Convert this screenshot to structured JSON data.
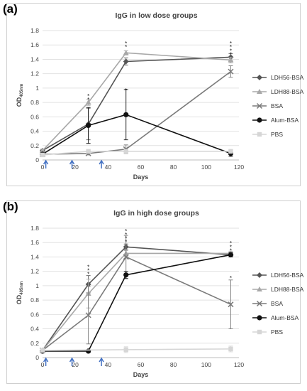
{
  "chart_data": [
    {
      "type": "line",
      "panel_label": "(a)",
      "title": "IgG in low dose groups",
      "xlabel": "Days",
      "ylabel_main": "OD",
      "ylabel_sub": "405nm",
      "xlim": [
        0,
        120
      ],
      "ylim": [
        0,
        1.8
      ],
      "xticks": [
        "0",
        "20",
        "40",
        "60",
        "80",
        "100",
        "120"
      ],
      "yticks": [
        "0",
        "0.2",
        "0.4",
        "0.6",
        "0.8",
        "1",
        "1.2",
        "1.4",
        "1.6",
        "1.8"
      ],
      "immunization_days": [
        2,
        18,
        36
      ],
      "legend_position": "right",
      "series": [
        {
          "name": "LDH56-BSA",
          "color": "#555555",
          "marker": "diamond",
          "x": [
            0,
            28,
            51,
            115
          ],
          "y": [
            0.13,
            0.5,
            1.37,
            1.43
          ],
          "err": [
            0.02,
            0.22,
            0.05,
            0.05
          ]
        },
        {
          "name": "LDH88-BSA",
          "color": "#a8a8a8",
          "marker": "triangle",
          "x": [
            0,
            28,
            51,
            115
          ],
          "y": [
            0.13,
            0.8,
            1.49,
            1.39
          ],
          "err": [
            0.02,
            0.04,
            0.03,
            0.04
          ]
        },
        {
          "name": "BSA",
          "color": "#7a7a7a",
          "marker": "x",
          "x": [
            0,
            28,
            51,
            115
          ],
          "y": [
            0.08,
            0.09,
            0.15,
            1.23
          ],
          "err": [
            0.01,
            0.02,
            0.06,
            0.08
          ]
        },
        {
          "name": "Alum-BSA",
          "color": "#111111",
          "marker": "circle",
          "x": [
            0,
            28,
            51,
            115
          ],
          "y": [
            0.08,
            0.48,
            0.63,
            0.09
          ],
          "err": [
            0.01,
            0.25,
            0.35,
            0.04
          ]
        },
        {
          "name": "PBS",
          "color": "#d6d6d6",
          "marker": "square",
          "x": [
            0,
            28,
            51,
            115
          ],
          "y": [
            0.07,
            0.12,
            0.12,
            0.12
          ],
          "err": [
            0.01,
            0.02,
            0.02,
            0.02
          ]
        }
      ],
      "annotations": [
        {
          "text": "*",
          "x": 28,
          "y": 0.85
        },
        {
          "text": "*",
          "x": 28,
          "y": 0.9
        },
        {
          "text": "*",
          "x": 51,
          "y": 1.58
        },
        {
          "text": "*",
          "x": 51,
          "y": 1.63
        },
        {
          "text": "*",
          "x": 51,
          "y": 0.98
        },
        {
          "text": "*",
          "x": 115,
          "y": 1.48
        },
        {
          "text": "*",
          "x": 115,
          "y": 1.53
        },
        {
          "text": "*",
          "x": 115,
          "y": 1.58
        },
        {
          "text": "*",
          "x": 115,
          "y": 1.63
        }
      ]
    },
    {
      "type": "line",
      "panel_label": "(b)",
      "title": "IgG in high dose groups",
      "xlabel": "Days",
      "ylabel_main": "OD",
      "ylabel_sub": "405nm",
      "xlim": [
        0,
        120
      ],
      "ylim": [
        0,
        1.8
      ],
      "xticks": [
        "0",
        "20",
        "40",
        "60",
        "80",
        "100",
        "120"
      ],
      "yticks": [
        "0",
        "0.2",
        "0.4",
        "0.6",
        "0.8",
        "1",
        "1.2",
        "1.4",
        "1.6",
        "1.8"
      ],
      "immunization_days": [
        2,
        18,
        36
      ],
      "legend_position": "right",
      "series": [
        {
          "name": "LDH56-BSA",
          "color": "#555555",
          "marker": "diamond",
          "x": [
            0,
            28,
            51,
            115
          ],
          "y": [
            0.1,
            1.02,
            1.54,
            1.43
          ],
          "err": [
            0.02,
            0.12,
            0.04,
            0.03
          ]
        },
        {
          "name": "LDH88-BSA",
          "color": "#a8a8a8",
          "marker": "triangle",
          "x": [
            0,
            28,
            51,
            115
          ],
          "y": [
            0.1,
            0.89,
            1.45,
            1.45
          ],
          "err": [
            0.02,
            0.2,
            0.04,
            0.03
          ]
        },
        {
          "name": "BSA",
          "color": "#7a7a7a",
          "marker": "x",
          "x": [
            0,
            28,
            51,
            115
          ],
          "y": [
            0.1,
            0.59,
            1.4,
            0.74
          ],
          "err": [
            0.02,
            0.4,
            0.3,
            0.34
          ]
        },
        {
          "name": "Alum-BSA",
          "color": "#111111",
          "marker": "circle",
          "x": [
            0,
            28,
            51,
            115
          ],
          "y": [
            0.09,
            0.09,
            1.15,
            1.43
          ],
          "err": [
            0.01,
            0.01,
            0.05,
            0.03
          ]
        },
        {
          "name": "PBS",
          "color": "#d6d6d6",
          "marker": "square",
          "x": [
            0,
            51,
            115
          ],
          "y": [
            0.1,
            0.11,
            0.12
          ],
          "err": [
            0.02,
            0.04,
            0.04
          ]
        }
      ],
      "annotations": [
        {
          "text": "*",
          "x": 28,
          "y": 1.17
        },
        {
          "text": "*",
          "x": 28,
          "y": 1.22
        },
        {
          "text": "*",
          "x": 28,
          "y": 1.27
        },
        {
          "text": "*",
          "x": 51,
          "y": 1.62
        },
        {
          "text": "*",
          "x": 51,
          "y": 1.67
        },
        {
          "text": "*",
          "x": 51,
          "y": 1.72
        },
        {
          "text": "*",
          "x": 51,
          "y": 1.77
        },
        {
          "text": "*",
          "x": 115,
          "y": 1.5
        },
        {
          "text": "*",
          "x": 115,
          "y": 1.55
        },
        {
          "text": "*",
          "x": 115,
          "y": 1.6
        },
        {
          "text": "*",
          "x": 115,
          "y": 1.12
        }
      ]
    }
  ]
}
